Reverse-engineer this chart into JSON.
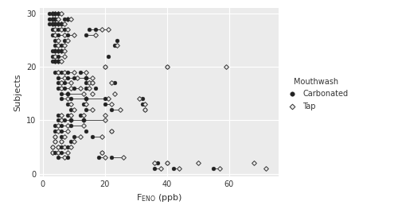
{
  "title": "",
  "xlabel": "F_ENO (ppb)",
  "ylabel": "Subjects",
  "xlim": [
    -1,
    76
  ],
  "ylim": [
    -0.5,
    31
  ],
  "xticks": [
    0,
    20,
    40,
    60
  ],
  "yticks": [
    0,
    10,
    20,
    30
  ],
  "background_color": "#EBEBEB",
  "panel_background": "#EBEBEB",
  "grid_color": "#FFFFFF",
  "legend_title": "Mouthwash",
  "text_color": "#333333",
  "pairs_data": [
    [
      30,
      [
        [
          2,
          3
        ],
        [
          3,
          4
        ],
        [
          4,
          5
        ],
        [
          5,
          6
        ]
      ]
    ],
    [
      29,
      [
        [
          2,
          3
        ],
        [
          3,
          4
        ],
        [
          4,
          5
        ],
        [
          7,
          8
        ],
        [
          8,
          9
        ]
      ]
    ],
    [
      28,
      [
        [
          2,
          3
        ],
        [
          3,
          4
        ],
        [
          4,
          5
        ],
        [
          5,
          6
        ],
        [
          6,
          7
        ]
      ]
    ],
    [
      27,
      [
        [
          3,
          4
        ],
        [
          5,
          6
        ],
        [
          7,
          8
        ],
        [
          15,
          19
        ],
        [
          17,
          21
        ]
      ]
    ],
    [
      26,
      [
        [
          3,
          4
        ],
        [
          5,
          7
        ],
        [
          8,
          10
        ],
        [
          14,
          17
        ]
      ]
    ],
    [
      25,
      [
        [
          4,
          5
        ],
        [
          7,
          8
        ],
        [
          24,
          null
        ]
      ]
    ],
    [
      24,
      [
        [
          4,
          5
        ],
        [
          6,
          7
        ],
        [
          23,
          24
        ]
      ]
    ],
    [
      23,
      [
        [
          3,
          4
        ],
        [
          4,
          5
        ],
        [
          5,
          6
        ],
        [
          6,
          7
        ]
      ]
    ],
    [
      22,
      [
        [
          3,
          4
        ],
        [
          5,
          7
        ],
        [
          21,
          null
        ]
      ]
    ],
    [
      21,
      [
        [
          3,
          4
        ],
        [
          4,
          5
        ],
        [
          5,
          6
        ]
      ]
    ],
    [
      20,
      [
        [
          20,
          20
        ],
        [
          40,
          40
        ],
        [
          null,
          59
        ]
      ]
    ],
    [
      19,
      [
        [
          4,
          5
        ],
        [
          6,
          7
        ],
        [
          8,
          10
        ],
        [
          12,
          14
        ]
      ]
    ],
    [
      18,
      [
        [
          5,
          7
        ],
        [
          8,
          11
        ],
        [
          10,
          14
        ],
        [
          14,
          16
        ]
      ]
    ],
    [
      17,
      [
        [
          5,
          6
        ],
        [
          7,
          9
        ],
        [
          14,
          15
        ],
        [
          16,
          16
        ],
        [
          23,
          22
        ]
      ]
    ],
    [
      16,
      [
        [
          5,
          6
        ],
        [
          7,
          9
        ],
        [
          10,
          12
        ],
        [
          14,
          15
        ],
        [
          17,
          null
        ]
      ]
    ],
    [
      15,
      [
        [
          6,
          8
        ],
        [
          8,
          13
        ],
        [
          null,
          16
        ],
        [
          null,
          23
        ]
      ]
    ],
    [
      14,
      [
        [
          6,
          8
        ],
        [
          9,
          14
        ],
        [
          14,
          21
        ],
        [
          20,
          null
        ],
        [
          32,
          31
        ]
      ]
    ],
    [
      13,
      [
        [
          8,
          9
        ],
        [
          13,
          14
        ],
        [
          20,
          22
        ],
        [
          32,
          33
        ]
      ]
    ],
    [
      12,
      [
        [
          9,
          10
        ],
        [
          14,
          16
        ],
        [
          22,
          25
        ],
        [
          33,
          33
        ]
      ]
    ],
    [
      11,
      [
        [
          5,
          6
        ],
        [
          8,
          9
        ],
        [
          12,
          13
        ],
        [
          null,
          20
        ]
      ]
    ],
    [
      10,
      [
        [
          5,
          6
        ],
        [
          7,
          9
        ],
        [
          9,
          13
        ],
        [
          13,
          20
        ]
      ]
    ],
    [
      9,
      [
        [
          4,
          5
        ],
        [
          6,
          8
        ],
        [
          9,
          13
        ]
      ]
    ],
    [
      8,
      [
        [
          4,
          5
        ],
        [
          6,
          8
        ],
        [
          14,
          null
        ],
        [
          22,
          22
        ]
      ]
    ],
    [
      7,
      [
        [
          4,
          4
        ],
        [
          6,
          7
        ],
        [
          10,
          12
        ],
        [
          16,
          19
        ]
      ]
    ],
    [
      6,
      [
        [
          4,
          4
        ],
        [
          6,
          6
        ],
        [
          9,
          10
        ]
      ]
    ],
    [
      5,
      [
        [
          3,
          3
        ],
        [
          5,
          5
        ],
        [
          6,
          7
        ],
        [
          8,
          9
        ]
      ]
    ],
    [
      4,
      [
        [
          3,
          3
        ],
        [
          4,
          5
        ],
        [
          6,
          8
        ],
        [
          19,
          19
        ]
      ]
    ],
    [
      3,
      [
        [
          5,
          7
        ],
        [
          8,
          null
        ],
        [
          18,
          20
        ],
        [
          22,
          26
        ]
      ]
    ],
    [
      2,
      [
        [
          37,
          36
        ],
        [
          40,
          40
        ],
        [
          null,
          50
        ],
        [
          null,
          68
        ]
      ]
    ],
    [
      1,
      [
        [
          36,
          38
        ],
        [
          42,
          44
        ],
        [
          55,
          57
        ],
        [
          null,
          72
        ]
      ]
    ]
  ]
}
